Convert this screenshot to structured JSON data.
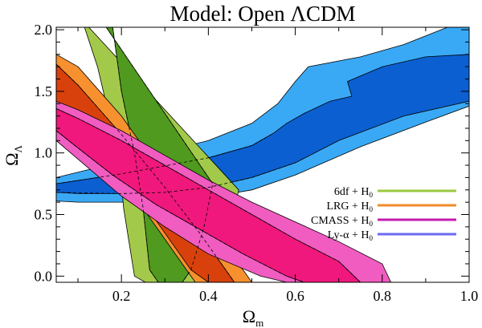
{
  "chart_data": {
    "type": "area",
    "title": "Model: Open ΛCDM",
    "xlabel": "Ω",
    "xlabel_sub": "m",
    "ylabel": "Ω",
    "ylabel_sub": "Λ",
    "xlim": [
      0.05,
      1.0
    ],
    "ylim": [
      -0.05,
      2.02
    ],
    "xticks": [
      0.2,
      0.4,
      0.6,
      0.8,
      1.0
    ],
    "xtick_labels": [
      "0.2",
      "0.4",
      "0.6",
      "0.8",
      "1.0"
    ],
    "yticks": [
      0.0,
      0.5,
      1.0,
      1.5,
      2.0
    ],
    "ytick_labels": [
      "0.0",
      "0.5",
      "1.0",
      "1.5",
      "2.0"
    ],
    "grid": false,
    "legend_position": "lower-right",
    "series": [
      {
        "name": "Ly-α + H",
        "name_sub": "0",
        "line_color": "#6a6af0",
        "colors": [
          "#3aa9f5",
          "#0b5fd0"
        ],
        "contours": [
          [
            [
              0.05,
              0.8
            ],
            [
              0.2,
              0.93
            ],
            [
              0.4,
              1.1
            ],
            [
              0.5,
              1.24
            ],
            [
              0.56,
              1.4
            ],
            [
              0.6,
              1.58
            ],
            [
              0.63,
              1.7
            ],
            [
              0.75,
              1.78
            ],
            [
              0.85,
              1.88
            ],
            [
              0.95,
              2.02
            ],
            [
              1.0,
              2.02
            ],
            [
              1.0,
              1.38
            ],
            [
              0.9,
              1.25
            ],
            [
              0.75,
              1.05
            ],
            [
              0.6,
              0.82
            ],
            [
              0.5,
              0.7
            ],
            [
              0.4,
              0.64
            ],
            [
              0.3,
              0.61
            ],
            [
              0.2,
              0.6
            ],
            [
              0.1,
              0.6
            ],
            [
              0.05,
              0.61
            ]
          ],
          [
            [
              0.05,
              0.75
            ],
            [
              0.2,
              0.83
            ],
            [
              0.4,
              0.96
            ],
            [
              0.5,
              1.06
            ],
            [
              0.55,
              1.16
            ],
            [
              0.58,
              1.24
            ],
            [
              0.62,
              1.32
            ],
            [
              0.68,
              1.42
            ],
            [
              0.73,
              1.46
            ],
            [
              0.72,
              1.58
            ],
            [
              0.8,
              1.7
            ],
            [
              0.9,
              1.78
            ],
            [
              1.0,
              1.8
            ],
            [
              1.0,
              1.42
            ],
            [
              0.85,
              1.3
            ],
            [
              0.7,
              1.1
            ],
            [
              0.6,
              0.92
            ],
            [
              0.5,
              0.8
            ],
            [
              0.4,
              0.72
            ],
            [
              0.3,
              0.68
            ],
            [
              0.2,
              0.67
            ],
            [
              0.1,
              0.67
            ],
            [
              0.05,
              0.68
            ]
          ]
        ]
      },
      {
        "name": "6df + H",
        "name_sub": "0",
        "line_color": "#9ac93f",
        "colors": [
          "#a3c94a",
          "#4f9a1f"
        ],
        "contours": [
          [
            [
              0.125,
              2.02
            ],
            [
              0.47,
              0.7
            ],
            [
              0.46,
              0.55
            ],
            [
              0.425,
              0.1
            ],
            [
              0.39,
              -0.05
            ],
            [
              0.255,
              -0.05
            ],
            [
              0.23,
              0.0
            ],
            [
              0.205,
              0.55
            ],
            [
              0.195,
              0.95
            ],
            [
              0.145,
              1.7
            ],
            [
              0.115,
              2.02
            ]
          ],
          [
            [
              0.165,
              2.02
            ],
            [
              0.41,
              0.75
            ],
            [
              0.39,
              0.4
            ],
            [
              0.36,
              0.05
            ],
            [
              0.34,
              -0.05
            ],
            [
              0.285,
              -0.05
            ],
            [
              0.265,
              0.05
            ],
            [
              0.25,
              0.55
            ],
            [
              0.23,
              1.0
            ],
            [
              0.2,
              1.5
            ],
            [
              0.18,
              2.02
            ]
          ]
        ]
      },
      {
        "name": "LRG + H",
        "name_sub": "0",
        "line_color": "#f08c28",
        "colors": [
          "#f7902e",
          "#d9410c"
        ],
        "contours": [
          [
            [
              0.05,
              1.8
            ],
            [
              0.1,
              1.7
            ],
            [
              0.2,
              1.3
            ],
            [
              0.3,
              0.8
            ],
            [
              0.4,
              0.35
            ],
            [
              0.48,
              0.05
            ],
            [
              0.5,
              -0.05
            ],
            [
              0.37,
              -0.05
            ],
            [
              0.34,
              0.1
            ],
            [
              0.25,
              0.55
            ],
            [
              0.2,
              0.8
            ],
            [
              0.15,
              1.05
            ],
            [
              0.1,
              1.25
            ],
            [
              0.05,
              1.38
            ]
          ],
          [
            [
              0.05,
              1.72
            ],
            [
              0.1,
              1.55
            ],
            [
              0.2,
              1.15
            ],
            [
              0.3,
              0.72
            ],
            [
              0.38,
              0.35
            ],
            [
              0.44,
              0.05
            ],
            [
              0.46,
              -0.05
            ],
            [
              0.4,
              -0.05
            ],
            [
              0.36,
              0.05
            ],
            [
              0.28,
              0.45
            ],
            [
              0.2,
              0.8
            ],
            [
              0.1,
              1.2
            ],
            [
              0.05,
              1.4
            ]
          ]
        ]
      },
      {
        "name": "CMASS + H",
        "name_sub": "0",
        "line_color": "#c41ab0",
        "colors": [
          "#f05cc0",
          "#f0187c"
        ],
        "contours": [
          [
            [
              0.05,
              1.42
            ],
            [
              0.1,
              1.35
            ],
            [
              0.2,
              1.18
            ],
            [
              0.3,
              0.98
            ],
            [
              0.4,
              0.78
            ],
            [
              0.5,
              0.6
            ],
            [
              0.6,
              0.44
            ],
            [
              0.7,
              0.28
            ],
            [
              0.8,
              0.1
            ],
            [
              0.82,
              -0.05
            ],
            [
              0.58,
              -0.05
            ],
            [
              0.52,
              0.0
            ],
            [
              0.4,
              0.18
            ],
            [
              0.3,
              0.4
            ],
            [
              0.2,
              0.65
            ],
            [
              0.1,
              0.95
            ],
            [
              0.05,
              1.1
            ]
          ],
          [
            [
              0.05,
              1.36
            ],
            [
              0.1,
              1.28
            ],
            [
              0.2,
              1.1
            ],
            [
              0.3,
              0.9
            ],
            [
              0.4,
              0.7
            ],
            [
              0.5,
              0.5
            ],
            [
              0.6,
              0.3
            ],
            [
              0.7,
              0.12
            ],
            [
              0.75,
              -0.05
            ],
            [
              0.62,
              -0.05
            ],
            [
              0.58,
              0.0
            ],
            [
              0.48,
              0.18
            ],
            [
              0.38,
              0.38
            ],
            [
              0.28,
              0.58
            ],
            [
              0.18,
              0.82
            ],
            [
              0.1,
              1.04
            ],
            [
              0.05,
              1.18
            ]
          ]
        ]
      }
    ],
    "overlay_dashed": [
      [
        [
          0.05,
          1.36
        ],
        [
          0.1,
          1.28
        ],
        [
          0.2,
          1.1
        ],
        [
          0.3,
          0.9
        ],
        [
          0.4,
          0.7
        ],
        [
          0.5,
          0.5
        ],
        [
          0.6,
          0.3
        ],
        [
          0.7,
          0.12
        ],
        [
          0.75,
          -0.05
        ]
      ],
      [
        [
          0.05,
          1.18
        ],
        [
          0.1,
          1.04
        ],
        [
          0.18,
          0.82
        ],
        [
          0.28,
          0.58
        ],
        [
          0.38,
          0.38
        ],
        [
          0.48,
          0.18
        ],
        [
          0.58,
          0.0
        ],
        [
          0.62,
          -0.05
        ]
      ],
      [
        [
          0.05,
          1.72
        ],
        [
          0.1,
          1.55
        ],
        [
          0.2,
          1.15
        ],
        [
          0.3,
          0.72
        ],
        [
          0.38,
          0.35
        ],
        [
          0.44,
          0.05
        ],
        [
          0.46,
          -0.05
        ]
      ],
      [
        [
          0.165,
          2.02
        ],
        [
          0.41,
          0.75
        ],
        [
          0.39,
          0.4
        ],
        [
          0.36,
          0.05
        ],
        [
          0.34,
          -0.05
        ]
      ],
      [
        [
          0.18,
          2.02
        ],
        [
          0.2,
          1.5
        ],
        [
          0.23,
          1.0
        ],
        [
          0.25,
          0.55
        ],
        [
          0.265,
          0.05
        ],
        [
          0.285,
          -0.05
        ]
      ],
      [
        [
          0.05,
          0.75
        ],
        [
          0.2,
          0.83
        ],
        [
          0.4,
          0.96
        ],
        [
          0.5,
          1.06
        ],
        [
          0.55,
          1.16
        ]
      ],
      [
        [
          0.05,
          0.68
        ],
        [
          0.2,
          0.67
        ],
        [
          0.3,
          0.68
        ],
        [
          0.4,
          0.72
        ],
        [
          0.5,
          0.8
        ],
        [
          0.6,
          0.92
        ]
      ]
    ],
    "legend_order": [
      1,
      2,
      3,
      0
    ]
  }
}
